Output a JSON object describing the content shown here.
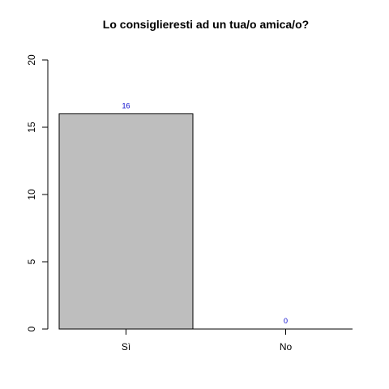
{
  "chart_data": {
    "type": "bar",
    "title": "Lo consiglieresti ad un tua/o amica/o?",
    "categories": [
      "Sì",
      "No"
    ],
    "values": [
      16,
      0
    ],
    "data_labels": [
      "16",
      "0"
    ],
    "ylim": [
      0,
      20
    ],
    "yticks": [
      "0",
      "5",
      "10",
      "15",
      "20"
    ],
    "xlabel": "",
    "ylabel": "",
    "grid": false,
    "legend": "none",
    "colors": {
      "bar_fill": "#bebebe",
      "bar_stroke": "#000000",
      "data_label": "#0000cc",
      "axis": "#000000"
    }
  }
}
